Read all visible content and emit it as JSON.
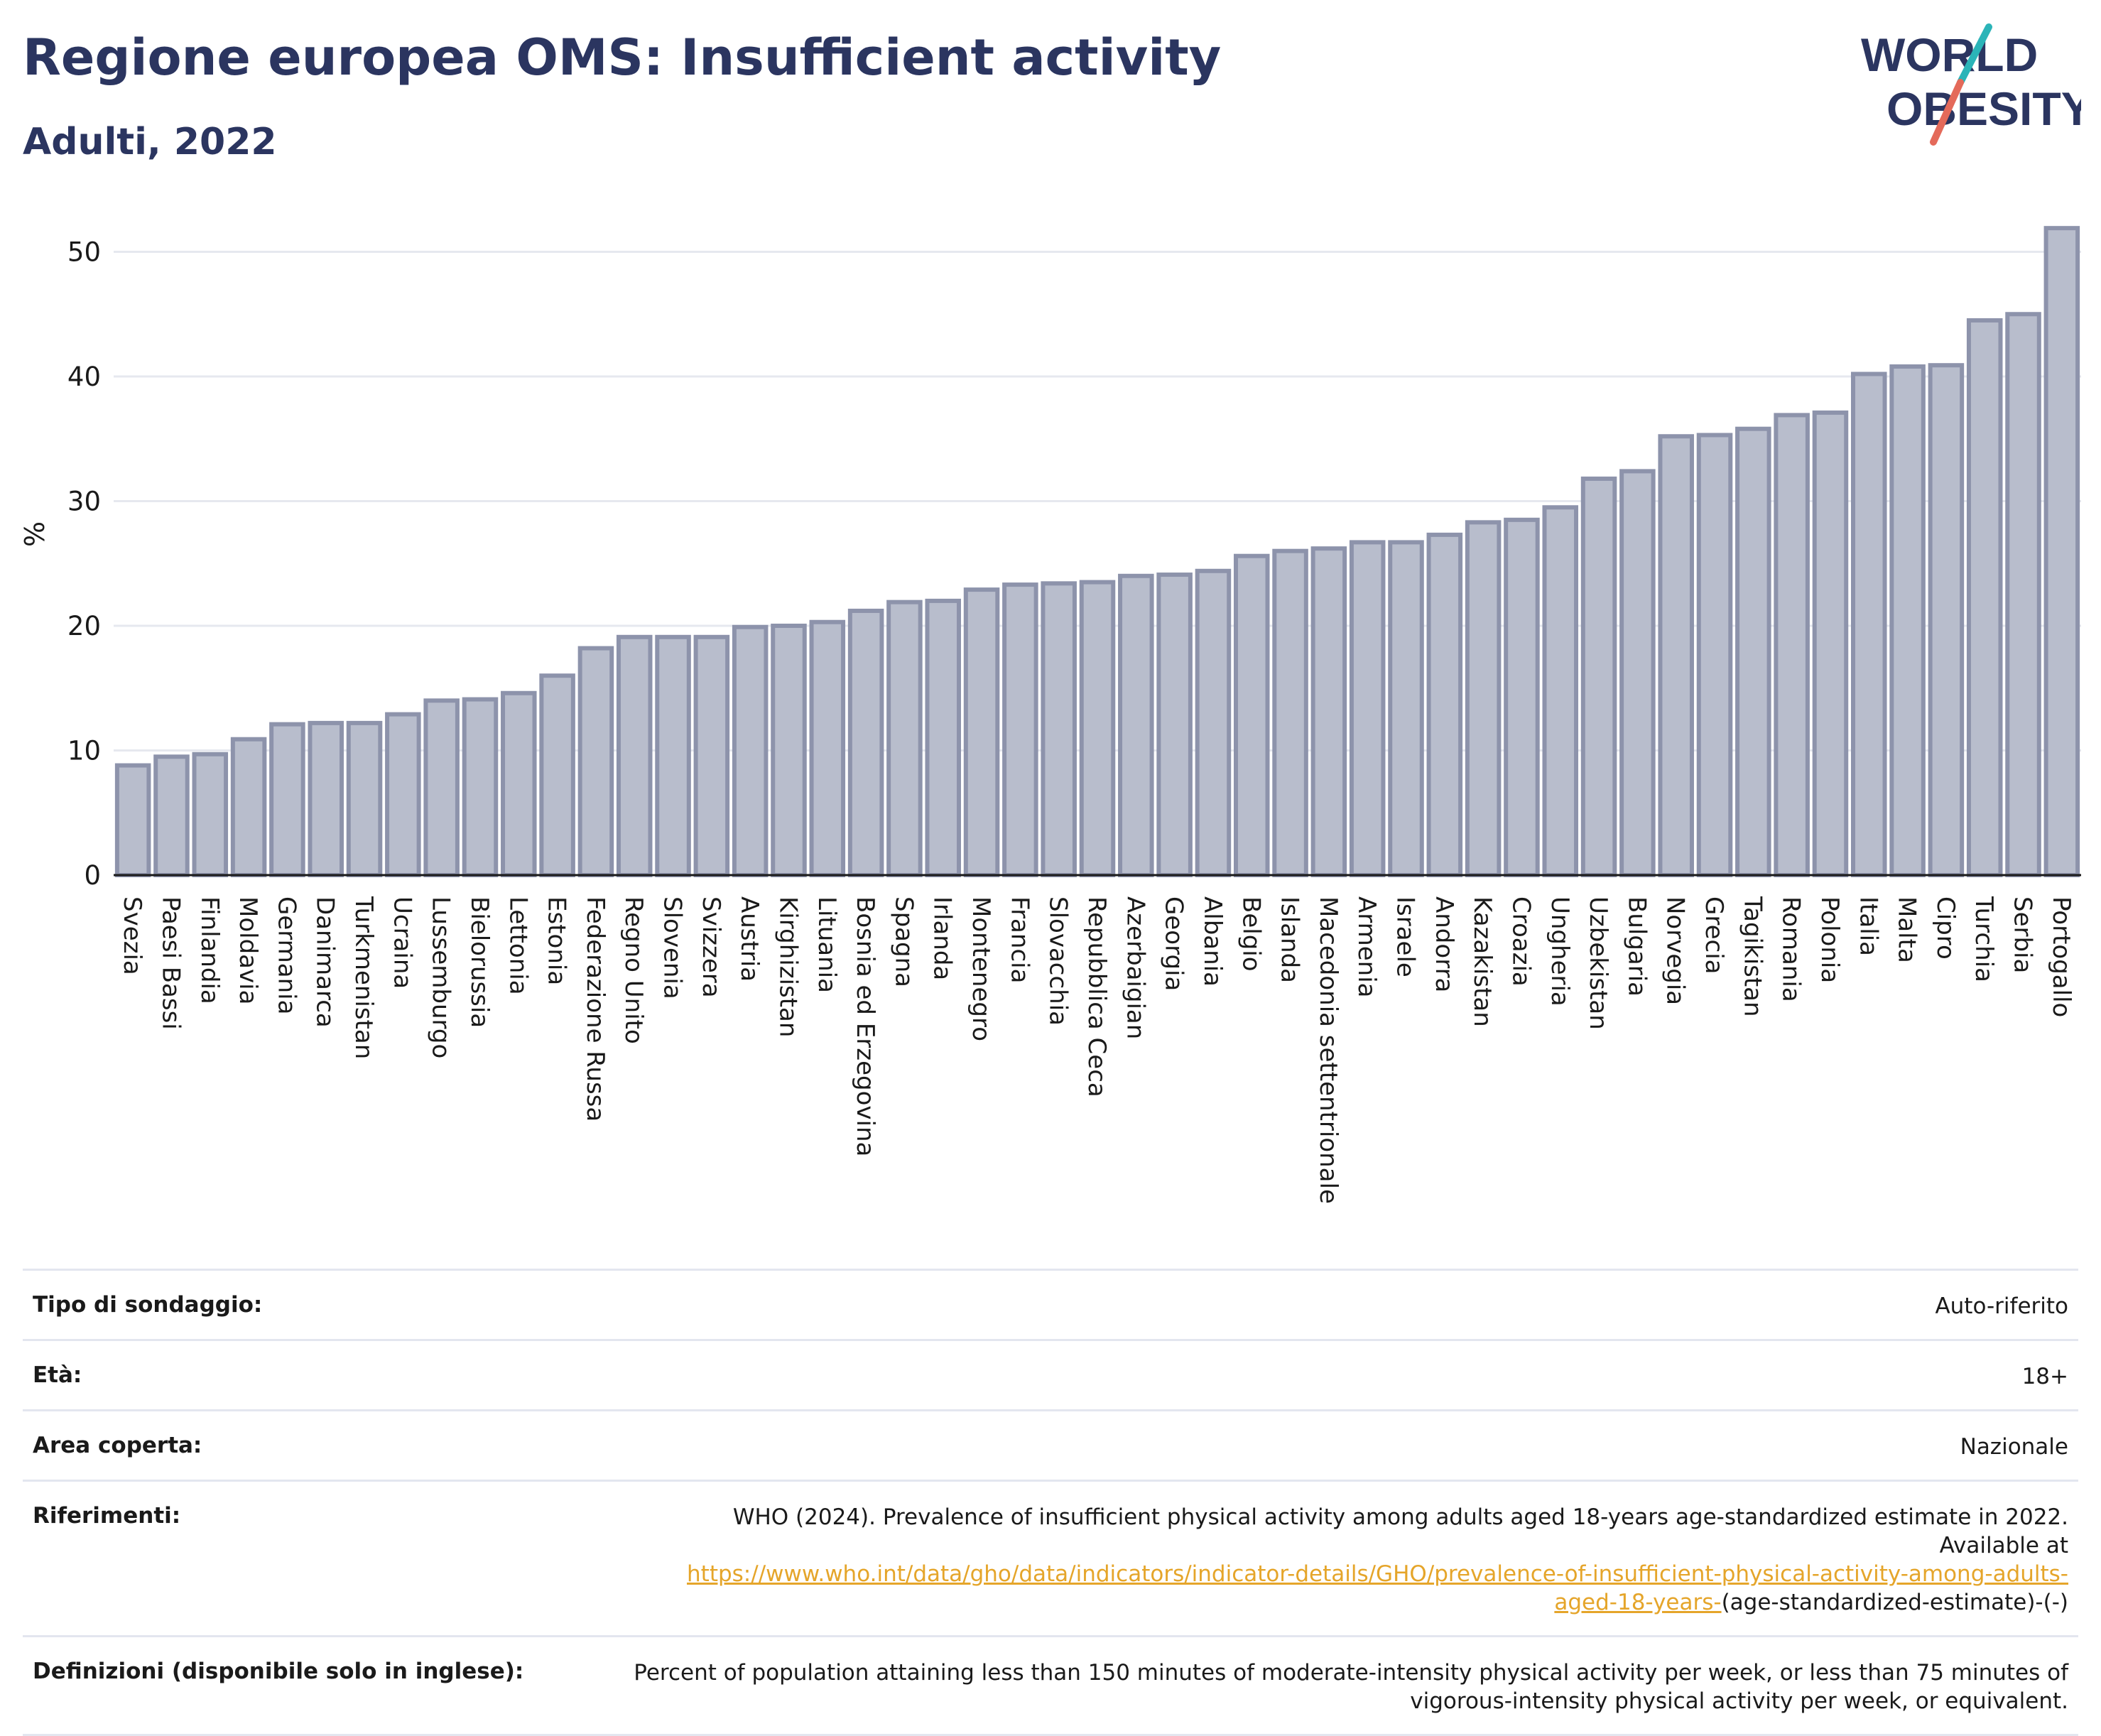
{
  "title": "Regione europea OMS: Insufficient activity",
  "subtitle": "Adulti, 2022",
  "logo": {
    "line1": "WORLD",
    "line2": "OBESITY",
    "accent": "#e46a5a",
    "accent2": "#2bb4b8",
    "color": "#2b3560"
  },
  "chart_data": {
    "type": "bar",
    "ylabel": "%",
    "ylim": [
      0,
      53
    ],
    "yticks": [
      0,
      10,
      20,
      30,
      40,
      50
    ],
    "grid": true,
    "bar_color": "#b8bdcc",
    "bar_edge": "#8d93ab",
    "categories": [
      "Svezia",
      "Paesi Bassi",
      "Finlandia",
      "Moldavia",
      "Germania",
      "Danimarca",
      "Turkmenistan",
      "Ucraina",
      "Lussemburgo",
      "Bielorussia",
      "Lettonia",
      "Estonia",
      "Federazione Russa",
      "Regno Unito",
      "Slovenia",
      "Svizzera",
      "Austria",
      "Kirghizistan",
      "Lituania",
      "Bosnia ed Erzegovina",
      "Spagna",
      "Irlanda",
      "Montenegro",
      "Francia",
      "Slovacchia",
      "Repubblica Ceca",
      "Azerbaigian",
      "Georgia",
      "Albania",
      "Belgio",
      "Islanda",
      "Macedonia settentrionale",
      "Armenia",
      "Israele",
      "Andorra",
      "Kazakistan",
      "Croazia",
      "Ungheria",
      "Uzbekistan",
      "Bulgaria",
      "Norvegia",
      "Grecia",
      "Tagikistan",
      "Romania",
      "Polonia",
      "Italia",
      "Malta",
      "Cipro",
      "Turchia",
      "Serbia",
      "Portogallo"
    ],
    "values": [
      8.8,
      9.5,
      9.7,
      10.9,
      12.1,
      12.2,
      12.2,
      12.9,
      14.0,
      14.1,
      14.6,
      16.0,
      18.2,
      19.1,
      19.1,
      19.1,
      19.9,
      20.0,
      20.3,
      21.2,
      21.9,
      22.0,
      22.9,
      23.3,
      23.4,
      23.5,
      24.0,
      24.1,
      24.4,
      25.6,
      26.0,
      26.2,
      26.7,
      26.7,
      27.3,
      28.3,
      28.5,
      29.5,
      31.8,
      32.4,
      35.2,
      35.3,
      35.8,
      36.9,
      37.1,
      40.2,
      40.8,
      40.9,
      44.5,
      45.0,
      51.9
    ]
  },
  "meta": {
    "rows": [
      {
        "label": "Tipo di sondaggio:",
        "value": "Auto-riferito"
      },
      {
        "label": "Età:",
        "value": "18+"
      },
      {
        "label": "Area coperta:",
        "value": "Nazionale"
      },
      {
        "label": "Riferimenti:",
        "value": "WHO (2024). Prevalence of insufficient physical activity among adults aged 18-years age-standardized estimate in 2022. Available at",
        "link": "https://www.who.int/data/gho/data/indicators/indicator-details/GHO/prevalence-of-insufficient-physical-activity-among-adults-aged-18-years-",
        "suffix": "(age-standardized-estimate)-(-)"
      },
      {
        "label": "Definizioni (disponibile solo in inglese):",
        "value": "Percent of population attaining less than 150 minutes of moderate-intensity physical activity per week, or less than 75 minutes of vigorous-intensity physical activity per week, or equivalent."
      }
    ]
  }
}
